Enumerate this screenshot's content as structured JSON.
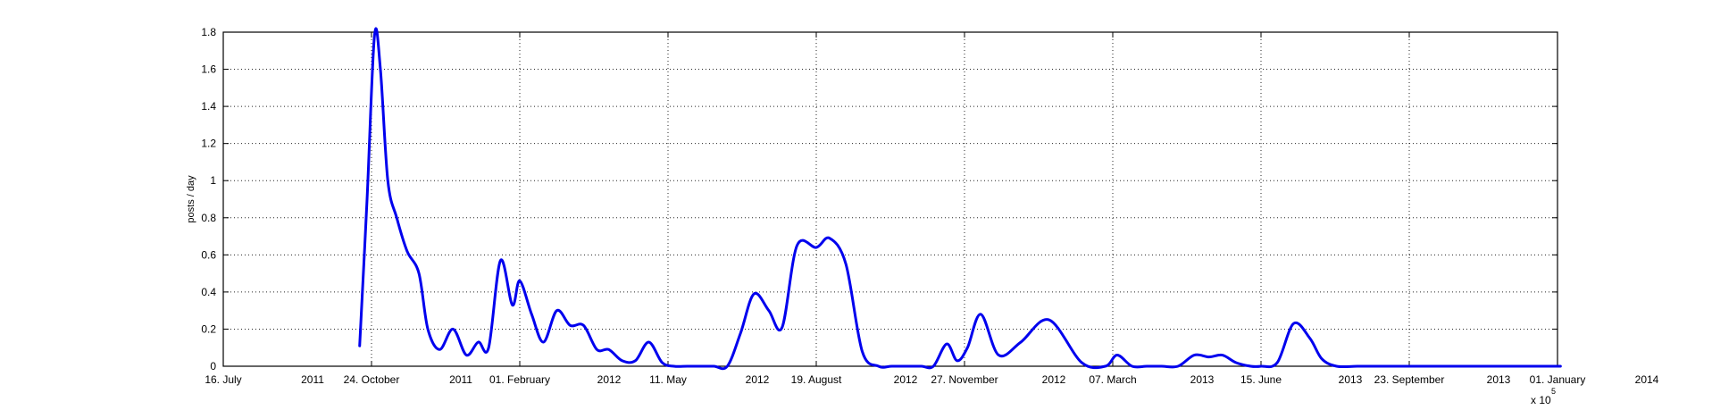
{
  "chart_data": {
    "type": "line",
    "title": "",
    "xlabel": "",
    "ylabel": "posts / day",
    "ylim": [
      0,
      1.8
    ],
    "y_ticks": [
      "0",
      "0.2",
      "0.4",
      "0.6",
      "0.8",
      "1",
      "1.2",
      "1.4",
      "1.6",
      "1.8"
    ],
    "x_tick_labels_top": [
      "16. July",
      "24. October",
      "01. February",
      "11. May",
      "19. August",
      "27. November",
      "07. March",
      "15. June",
      "23. September",
      "01. January"
    ],
    "x_tick_labels_year": [
      "2011",
      "2011",
      "2012",
      "2012",
      "2012",
      "2012",
      "2013",
      "2013",
      "2013",
      "2014"
    ],
    "x_multiplier_base": "x 10",
    "x_multiplier_exp": "5",
    "grid": true,
    "line_color": "#0000ee",
    "series": [
      {
        "name": "",
        "x": [
          "2011-10-16",
          "2011-10-21",
          "2011-10-26",
          "2011-10-30",
          "2011-11-04",
          "2011-11-10",
          "2011-11-17",
          "2011-11-25",
          "2011-12-01",
          "2011-12-09",
          "2011-12-18",
          "2011-12-27",
          "2012-01-04",
          "2012-01-11",
          "2012-01-19",
          "2012-01-27",
          "2012-02-01",
          "2012-02-09",
          "2012-02-17",
          "2012-02-26",
          "2012-03-06",
          "2012-03-15",
          "2012-03-24",
          "2012-04-01",
          "2012-04-10",
          "2012-04-19",
          "2012-04-28",
          "2012-05-07",
          "2012-05-15",
          "2012-05-24",
          "2012-06-02",
          "2012-06-11",
          "2012-06-20",
          "2012-06-29",
          "2012-07-08",
          "2012-07-18",
          "2012-07-27",
          "2012-08-06",
          "2012-08-19",
          "2012-08-28",
          "2012-09-08",
          "2012-09-19",
          "2012-09-30",
          "2012-10-09",
          "2012-10-20",
          "2012-10-29",
          "2012-11-06",
          "2012-11-15",
          "2012-11-22",
          "2012-11-29",
          "2012-12-08",
          "2012-12-20",
          "2013-01-04",
          "2013-01-23",
          "2013-02-14",
          "2013-03-02",
          "2013-03-10",
          "2013-03-20",
          "2013-03-30",
          "2013-04-09",
          "2013-04-20",
          "2013-05-01",
          "2013-05-11",
          "2013-05-20",
          "2013-05-29",
          "2013-06-08",
          "2013-06-15",
          "2013-06-26",
          "2013-07-07",
          "2013-07-18",
          "2013-07-26",
          "2013-08-05",
          "2013-08-19",
          "2013-09-05",
          "2013-09-22",
          "2013-10-02",
          "2013-10-10",
          "2013-10-19",
          "2013-10-28",
          "2013-11-07",
          "2013-11-22",
          "2013-12-05",
          "2013-12-14",
          "2013-12-23",
          "2014-01-03"
        ],
        "y": [
          0.11,
          0.9,
          1.78,
          1.6,
          1.0,
          0.8,
          0.62,
          0.5,
          0.2,
          0.09,
          0.2,
          0.06,
          0.13,
          0.1,
          0.57,
          0.33,
          0.46,
          0.28,
          0.13,
          0.3,
          0.22,
          0.22,
          0.09,
          0.09,
          0.03,
          0.03,
          0.13,
          0.02,
          0.0,
          0.0,
          0.0,
          0.0,
          0.0,
          0.18,
          0.39,
          0.3,
          0.21,
          0.65,
          0.64,
          0.69,
          0.55,
          0.08,
          0.0,
          0.0,
          0.0,
          0.0,
          0.0,
          0.12,
          0.03,
          0.1,
          0.28,
          0.06,
          0.13,
          0.25,
          0.02,
          0.0,
          0.06,
          0.0,
          0.0,
          0.0,
          0.0,
          0.06,
          0.05,
          0.06,
          0.02,
          0.0,
          0.0,
          0.02,
          0.23,
          0.15,
          0.04,
          0.0,
          0.0,
          0.0,
          0.0,
          0.0,
          0.0,
          0.0,
          0.0,
          0.0,
          0.0,
          0.0,
          0.0,
          0.0,
          0.0
        ]
      }
    ]
  }
}
